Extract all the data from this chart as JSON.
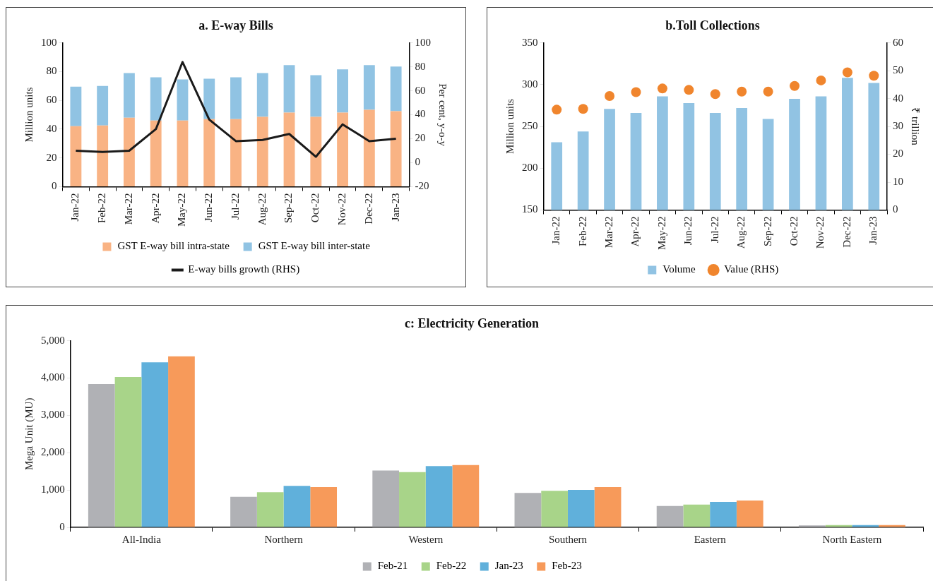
{
  "chart_data": [
    {
      "type": "bar",
      "title": "a. E-way Bills",
      "ylabel": "Million units",
      "y2label": "Per cent, y-o-y",
      "stacked": true,
      "legend": "bottom",
      "grid": false,
      "categories": [
        "Jan-22",
        "Feb-22",
        "Mar-22",
        "Apr-22",
        "May-22",
        "Jun-22",
        "Jul-22",
        "Aug-22",
        "Sep-22",
        "Oct-22",
        "Nov-22",
        "Dec-22",
        "Jan-23"
      ],
      "series": [
        {
          "name": "GST E-way bill intra-state",
          "color": "#f9b384",
          "values": [
            42,
            42.5,
            48,
            46,
            46,
            47,
            47,
            48.5,
            51.5,
            48.5,
            51.5,
            53.5,
            52.5
          ]
        },
        {
          "name": "GST E-way bill inter-state",
          "color": "#90c3e3",
          "values": [
            27.5,
            27.5,
            31,
            30,
            28.5,
            28,
            29,
            30.5,
            33,
            29,
            30,
            31,
            31
          ]
        },
        {
          "name": "E-way bills growth (RHS)",
          "type": "line",
          "axis": "y2",
          "marker": "none",
          "line_style": "solid",
          "color": "#1a1a1a",
          "values": [
            10,
            9,
            10,
            28,
            84,
            36,
            18,
            19,
            24,
            5,
            32,
            18,
            20
          ]
        }
      ],
      "ylim": [
        0,
        100
      ],
      "yticks": [
        0,
        20,
        40,
        60,
        80,
        100
      ],
      "y2lim": [
        -20,
        100
      ],
      "y2ticks": [
        -20,
        0,
        20,
        40,
        60,
        80,
        100
      ]
    },
    {
      "type": "bar",
      "title": "b.Toll Collections",
      "ylabel": "Million units",
      "y2label": "₹ trillion",
      "legend": "bottom",
      "grid": false,
      "categories": [
        "Jan-22",
        "Feb-22",
        "Mar-22",
        "Apr-22",
        "May-22",
        "Jun-22",
        "Jul-22",
        "Aug-22",
        "Sep-22",
        "Oct-22",
        "Nov-22",
        "Dec-22",
        "Jan-23"
      ],
      "series": [
        {
          "name": "Volume",
          "color": "#91c3e3",
          "values": [
            231,
            244,
            271,
            266,
            286,
            278,
            266,
            272,
            259,
            283,
            286,
            308,
            302
          ]
        },
        {
          "name": "Value (RHS)",
          "type": "scatter",
          "axis": "y2",
          "marker": "circle",
          "color": "#f0852d",
          "values": [
            36,
            36.3,
            40.9,
            42.3,
            43.6,
            43.1,
            41.6,
            42.5,
            42.5,
            44.5,
            46.5,
            49.4,
            48.2
          ]
        }
      ],
      "ylim": [
        150,
        350
      ],
      "yticks": [
        150,
        200,
        250,
        300,
        350
      ],
      "y2lim": [
        0,
        60
      ],
      "y2ticks": [
        0,
        10,
        20,
        30,
        40,
        50,
        60
      ]
    },
    {
      "type": "bar",
      "title": "c: Electricity Generation",
      "ylabel": "Mega Unit (MU)",
      "legend": "bottom",
      "grid": false,
      "categories": [
        "All-India",
        "Northern",
        "Western",
        "Southern",
        "Eastern",
        "North Eastern"
      ],
      "series": [
        {
          "name": "Feb-21",
          "color": "#b0b1b5",
          "values": [
            3840,
            820,
            1520,
            920,
            570,
            50
          ]
        },
        {
          "name": "Feb-22",
          "color": "#a8d489",
          "values": [
            4030,
            940,
            1480,
            980,
            610,
            60
          ]
        },
        {
          "name": "Jan-23",
          "color": "#60b0db",
          "values": [
            4420,
            1110,
            1640,
            1000,
            680,
            60
          ]
        },
        {
          "name": "Feb-23",
          "color": "#f79a5a",
          "values": [
            4580,
            1080,
            1670,
            1080,
            720,
            60
          ]
        }
      ],
      "ylim": [
        0,
        5000
      ],
      "yticks": [
        0,
        {
          "value": 1000,
          "label": "1,000"
        },
        {
          "value": 2000,
          "label": "2,000"
        },
        {
          "value": 3000,
          "label": "3,000"
        },
        {
          "value": 4000,
          "label": "4,000"
        },
        {
          "value": 5000,
          "label": "5,000"
        }
      ]
    }
  ]
}
